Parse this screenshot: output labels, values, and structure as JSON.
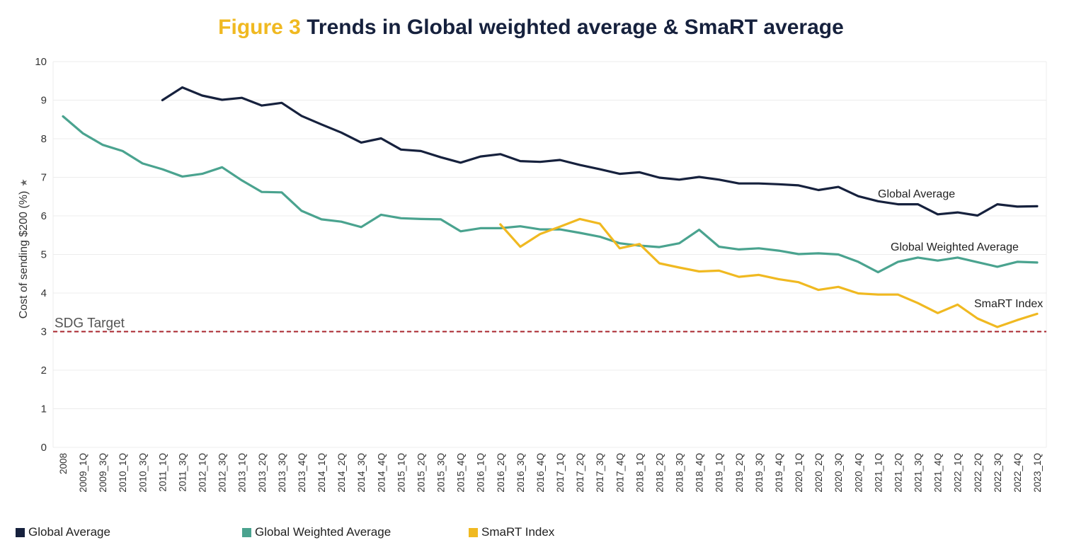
{
  "title": {
    "figure_label": "Figure 3",
    "text": "Trends in Global weighted average & SmaRT average"
  },
  "chart_data": {
    "type": "line",
    "ylabel": "Cost of sending $200 (%)",
    "ylim": [
      0,
      10
    ],
    "yticks": [
      0,
      1,
      2,
      3,
      4,
      5,
      6,
      7,
      8,
      9,
      10
    ],
    "grid": true,
    "legend_placement": "bottom-left",
    "x": [
      "2008",
      "2009_1Q",
      "2009_3Q",
      "2010_1Q",
      "2010_3Q",
      "2011_1Q",
      "2011_3Q",
      "2012_1Q",
      "2012_3Q",
      "2013_1Q",
      "2013_2Q",
      "2013_3Q",
      "2013_4Q",
      "2014_1Q",
      "2014_2Q",
      "2014_3Q",
      "2014_4Q",
      "2015_1Q",
      "2015_2Q",
      "2015_3Q",
      "2015_4Q",
      "2016_1Q",
      "2016_2Q",
      "2016_3Q",
      "2016_4Q",
      "2017_1Q",
      "2017_2Q",
      "2017_3Q",
      "2017_4Q",
      "2018_1Q",
      "2018_2Q",
      "2018_3Q",
      "2018_4Q",
      "2019_1Q",
      "2019_2Q",
      "2019_3Q",
      "2019_4Q",
      "2020_1Q",
      "2020_2Q",
      "2020_3Q",
      "2020_4Q",
      "2021_1Q",
      "2021_2Q",
      "2021_3Q",
      "2021_4Q",
      "2022_1Q",
      "2022_2Q",
      "2022_3Q",
      "2022_4Q",
      "2023_1Q"
    ],
    "series": [
      {
        "name": "Global Average",
        "color": "#16213d",
        "values": [
          null,
          null,
          null,
          null,
          null,
          9.0,
          9.33,
          9.12,
          9.01,
          9.06,
          8.86,
          8.93,
          8.59,
          8.37,
          8.16,
          7.9,
          8.01,
          7.72,
          7.68,
          7.52,
          7.38,
          7.54,
          7.6,
          7.42,
          7.4,
          7.45,
          7.32,
          7.21,
          7.09,
          7.13,
          6.99,
          6.94,
          7.01,
          6.94,
          6.84,
          6.84,
          6.82,
          6.79,
          6.67,
          6.75,
          6.51,
          6.38,
          6.3,
          6.3,
          6.04,
          6.09,
          6.01,
          6.3,
          6.24,
          6.25
        ]
      },
      {
        "name": "Global Weighted Average",
        "color": "#4aa38f",
        "values": [
          8.58,
          8.14,
          7.84,
          7.68,
          7.36,
          7.21,
          7.02,
          7.09,
          7.26,
          6.92,
          6.62,
          6.61,
          6.13,
          5.91,
          5.85,
          5.71,
          6.03,
          5.94,
          5.92,
          5.91,
          5.6,
          5.68,
          5.68,
          5.73,
          5.65,
          5.65,
          5.56,
          5.46,
          5.29,
          5.23,
          5.19,
          5.29,
          5.64,
          5.2,
          5.13,
          5.16,
          5.1,
          5.01,
          5.03,
          5.0,
          4.81,
          4.54,
          4.81,
          4.92,
          4.84,
          4.92,
          4.8,
          4.68,
          4.81,
          4.79
        ]
      },
      {
        "name": "SmaRT Index",
        "color": "#f0b921",
        "values": [
          null,
          null,
          null,
          null,
          null,
          null,
          null,
          null,
          null,
          null,
          null,
          null,
          null,
          null,
          null,
          null,
          null,
          null,
          null,
          null,
          null,
          null,
          5.78,
          5.2,
          5.53,
          5.72,
          5.92,
          5.8,
          5.16,
          5.27,
          4.77,
          4.66,
          4.56,
          4.58,
          4.42,
          4.47,
          4.36,
          4.28,
          4.08,
          4.16,
          3.99,
          3.96,
          3.96,
          3.74,
          3.48,
          3.7,
          3.34,
          3.12,
          3.3,
          3.46
        ]
      }
    ],
    "annotations": [
      {
        "text": "Global Average",
        "series": "Global Average"
      },
      {
        "text": "Global Weighted Average",
        "series": "Global Weighted Average"
      },
      {
        "text": "SmaRT Index",
        "series": "SmaRT Index"
      }
    ],
    "reference_line": {
      "label": "SDG Target",
      "value": 3,
      "color": "#a8252c",
      "style": "dashed"
    },
    "gridline_color": "#ececec"
  },
  "legend": [
    {
      "label": "Global Average",
      "color": "#16213d"
    },
    {
      "label": "Global Weighted Average",
      "color": "#4aa38f"
    },
    {
      "label": "SmaRT Index",
      "color": "#f0b921"
    }
  ],
  "icons": {
    "axis_label_icon": "pin-icon"
  }
}
